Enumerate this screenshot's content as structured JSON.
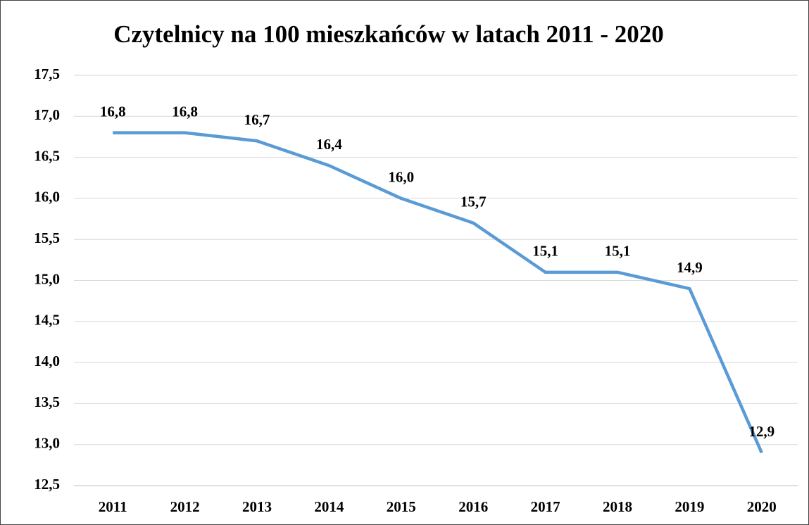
{
  "chart_data": {
    "type": "line",
    "title": "Czytelnicy na 100 mieszkańców w latach 2011 - 2020",
    "categories": [
      "2011",
      "2012",
      "2013",
      "2014",
      "2015",
      "2016",
      "2017",
      "2018",
      "2019",
      "2020"
    ],
    "series": [
      {
        "color": "#5b9bd5",
        "values": [
          16.8,
          16.8,
          16.7,
          16.4,
          16.0,
          15.7,
          15.1,
          15.1,
          14.9,
          12.9
        ],
        "value_labels": [
          "16,8",
          "16,8",
          "16,7",
          "16,4",
          "16,0",
          "15,7",
          "15,1",
          "15,1",
          "14,9",
          "12,9"
        ]
      }
    ],
    "ylim": [
      12.5,
      17.5
    ],
    "yticks": [
      {
        "value": 12.5,
        "label": "12,5"
      },
      {
        "value": 13.0,
        "label": "13,0"
      },
      {
        "value": 13.5,
        "label": "13,5"
      },
      {
        "value": 14.0,
        "label": "14,0"
      },
      {
        "value": 14.5,
        "label": "14,5"
      },
      {
        "value": 15.0,
        "label": "15,0"
      },
      {
        "value": 15.5,
        "label": "15,5"
      },
      {
        "value": 16.0,
        "label": "16,0"
      },
      {
        "value": 16.5,
        "label": "16,5"
      },
      {
        "value": 17.0,
        "label": "17,0"
      },
      {
        "value": 17.5,
        "label": "17,5"
      }
    ],
    "grid": true
  }
}
